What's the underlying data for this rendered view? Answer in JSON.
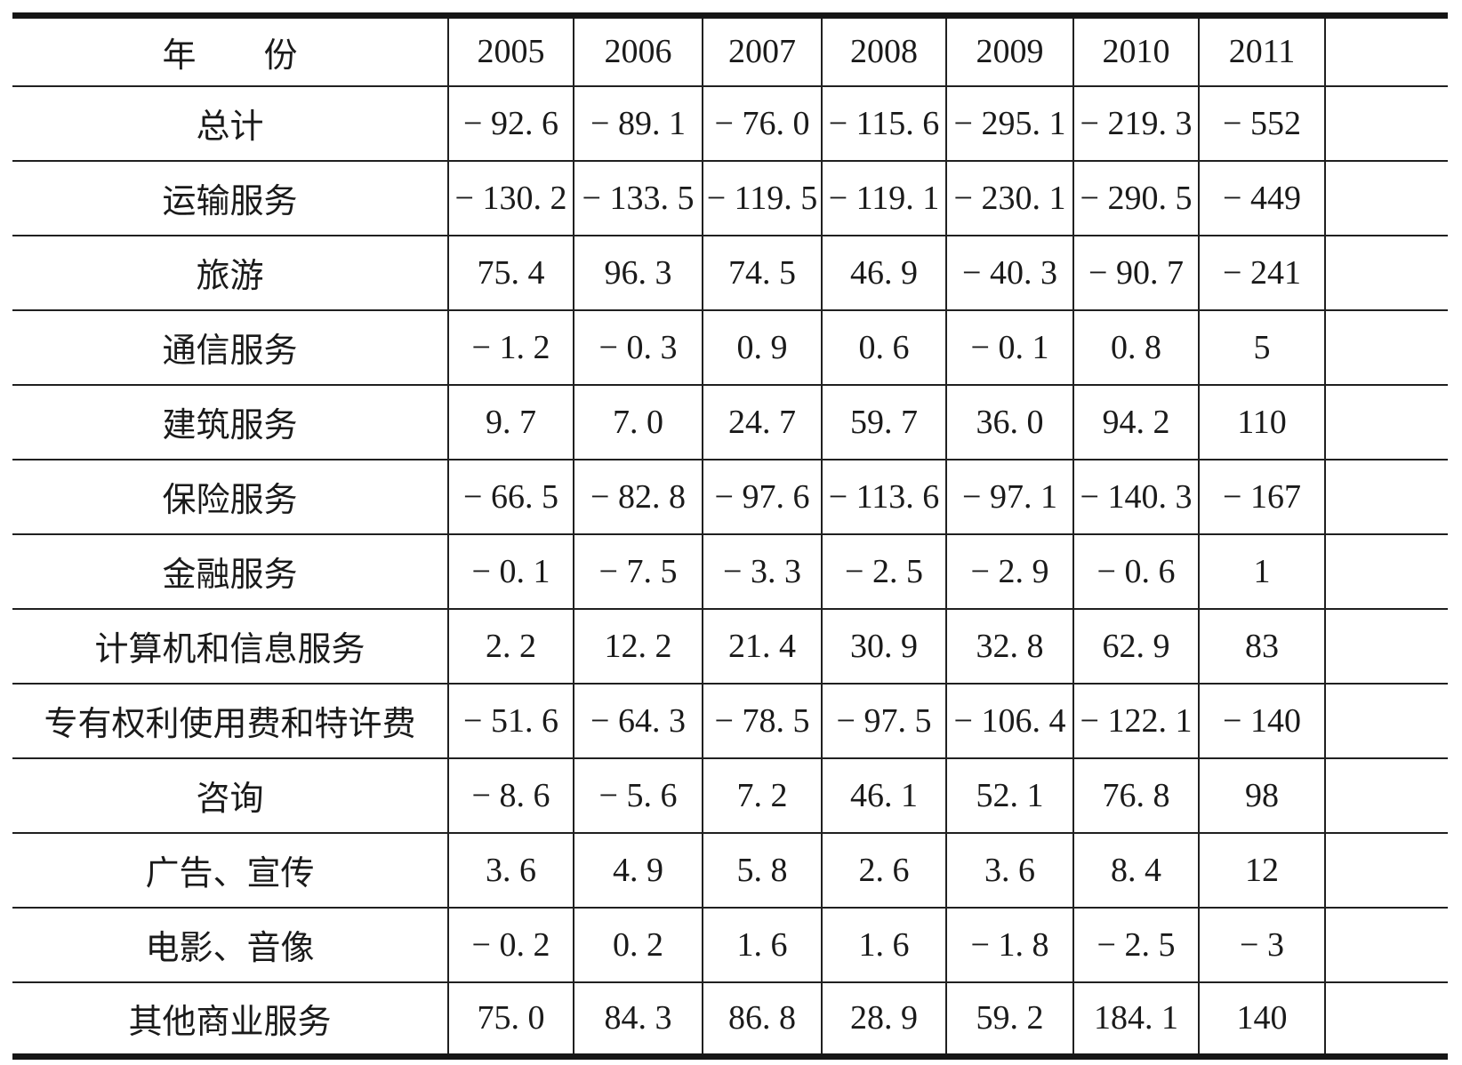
{
  "table": {
    "header_cells": [
      "年　　份",
      "2005",
      "2006",
      "2007",
      "2008",
      "2009",
      "2010",
      "2011",
      ""
    ],
    "rows": [
      {
        "label": "总计",
        "values": [
          "− 92. 6",
          "− 89. 1",
          "− 76. 0",
          "− 115. 6",
          "− 295. 1",
          "− 219. 3",
          "− 552"
        ]
      },
      {
        "label": "运输服务",
        "values": [
          "− 130. 2",
          "− 133. 5",
          "− 119. 5",
          "− 119. 1",
          "− 230. 1",
          "− 290. 5",
          "− 449"
        ]
      },
      {
        "label": "旅游",
        "values": [
          "75. 4",
          "96. 3",
          "74. 5",
          "46. 9",
          "− 40. 3",
          "− 90. 7",
          "− 241"
        ]
      },
      {
        "label": "通信服务",
        "values": [
          "− 1. 2",
          "− 0. 3",
          "0. 9",
          "0. 6",
          "− 0. 1",
          "0. 8",
          "5"
        ]
      },
      {
        "label": "建筑服务",
        "values": [
          "9. 7",
          "7. 0",
          "24. 7",
          "59. 7",
          "36. 0",
          "94. 2",
          "110"
        ]
      },
      {
        "label": "保险服务",
        "values": [
          "− 66. 5",
          "− 82. 8",
          "− 97. 6",
          "− 113. 6",
          "− 97. 1",
          "− 140. 3",
          "− 167"
        ]
      },
      {
        "label": "金融服务",
        "values": [
          "− 0. 1",
          "− 7. 5",
          "− 3. 3",
          "− 2. 5",
          "− 2. 9",
          "− 0. 6",
          "1"
        ]
      },
      {
        "label": "计算机和信息服务",
        "values": [
          "2. 2",
          "12. 2",
          "21. 4",
          "30. 9",
          "32. 8",
          "62. 9",
          "83"
        ]
      },
      {
        "label": "专有权利使用费和特许费",
        "values": [
          "− 51. 6",
          "− 64. 3",
          "− 78. 5",
          "− 97. 5",
          "− 106. 4",
          "− 122. 1",
          "− 140"
        ]
      },
      {
        "label": "咨询",
        "values": [
          "− 8. 6",
          "− 5. 6",
          "7. 2",
          "46. 1",
          "52. 1",
          "76. 8",
          "98"
        ]
      },
      {
        "label": "广告、宣传",
        "values": [
          "3. 6",
          "4. 9",
          "5. 8",
          "2. 6",
          "3. 6",
          "8. 4",
          "12"
        ]
      },
      {
        "label": "电影、音像",
        "values": [
          "− 0. 2",
          "0. 2",
          "1. 6",
          "1. 6",
          "− 1. 8",
          "− 2. 5",
          "− 3"
        ]
      },
      {
        "label": "其他商业服务",
        "values": [
          "75. 0",
          "84. 3",
          "86. 8",
          "28. 9",
          "59. 2",
          "184. 1",
          "140"
        ]
      }
    ]
  }
}
